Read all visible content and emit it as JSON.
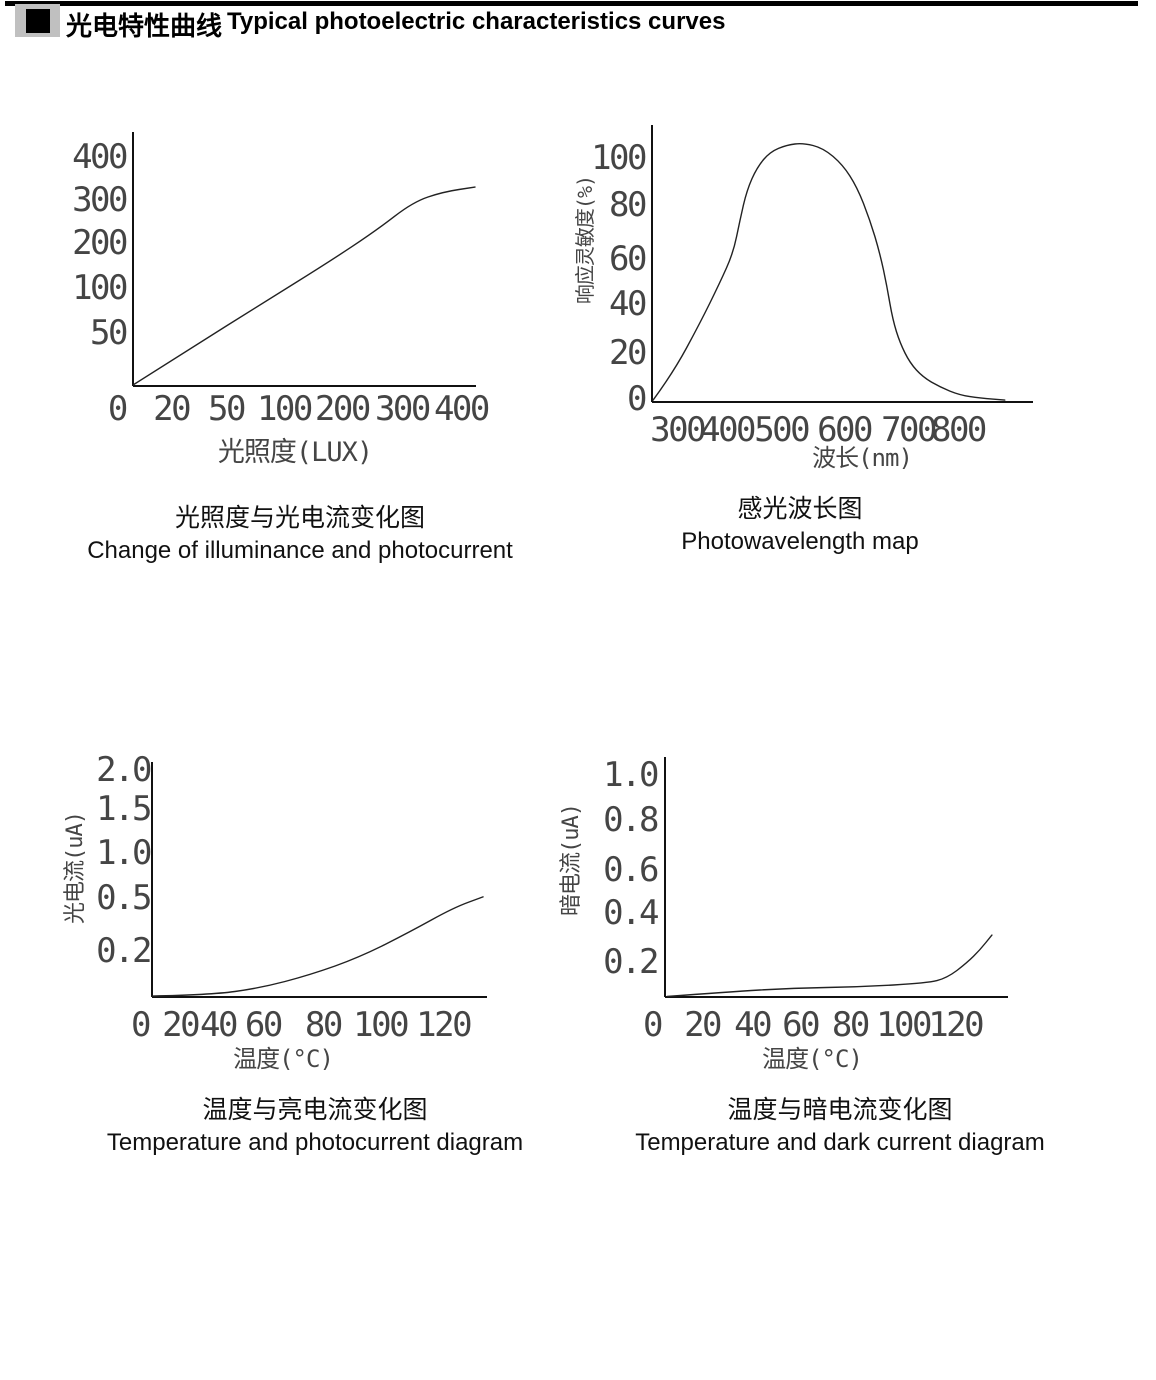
{
  "page": {
    "header": {
      "bullet_icon": "black-square",
      "title_cn": "光电特性曲线",
      "title_en": "Typical photoelectric characteristics curves"
    }
  },
  "chart_data": [
    {
      "id": "illuminance-photocurrent",
      "type": "line",
      "caption_cn": "光照度与光电流变化图",
      "caption_en": "Change of illuminance and photocurrent",
      "xlabel": "光照度(LUX)",
      "ylabel": "",
      "x_unit": "LUX",
      "y_unit": "",
      "x_ticks": {
        "labels": [
          "0",
          "20",
          "50",
          "100",
          "200",
          "300",
          "400"
        ],
        "fracs": [
          -0.047,
          0.111,
          0.271,
          0.44,
          0.609,
          0.784,
          0.956
        ]
      },
      "y_ticks": {
        "labels": [
          "400",
          "300",
          "200",
          "100",
          "50"
        ],
        "fracs": [
          0.906,
          0.736,
          0.567,
          0.39,
          0.213
        ]
      },
      "points": [
        [
          0,
          0
        ],
        [
          20,
          28
        ],
        [
          50,
          65
        ],
        [
          100,
          115
        ],
        [
          200,
          200
        ],
        [
          300,
          285
        ],
        [
          400,
          325
        ]
      ],
      "curve_frac": [
        [
          0,
          0.004
        ],
        [
          0.175,
          0.154
        ],
        [
          0.37,
          0.319
        ],
        [
          0.566,
          0.484
        ],
        [
          0.711,
          0.614
        ],
        [
          0.816,
          0.724
        ],
        [
          0.904,
          0.764
        ],
        [
          0.997,
          0.783
        ]
      ],
      "grid": false,
      "legend": false
    },
    {
      "id": "photowavelength",
      "type": "line",
      "caption_cn": "感光波长图",
      "caption_en": "Photowavelength map",
      "xlabel": "波长(nm)",
      "ylabel": "响应灵敏度(%)",
      "x_unit": "nm",
      "y_unit": "%",
      "x_ticks": {
        "labels": [
          "300",
          "400",
          "500",
          "600",
          "700",
          "800"
        ],
        "fracs": [
          0.066,
          0.197,
          0.339,
          0.504,
          0.672,
          0.803
        ]
      },
      "y_ticks": {
        "labels": [
          "100",
          "80",
          "60",
          "40",
          "20",
          "0"
        ],
        "fracs": [
          0.884,
          0.715,
          0.52,
          0.357,
          0.181,
          0.014
        ]
      },
      "points": [
        [
          300,
          2
        ],
        [
          350,
          14
        ],
        [
          400,
          30
        ],
        [
          430,
          43
        ],
        [
          450,
          60
        ],
        [
          470,
          82
        ],
        [
          490,
          95
        ],
        [
          520,
          103
        ],
        [
          545,
          105
        ],
        [
          570,
          101
        ],
        [
          600,
          88
        ],
        [
          625,
          65
        ],
        [
          645,
          45
        ],
        [
          665,
          25
        ],
        [
          690,
          13
        ],
        [
          720,
          7
        ],
        [
          760,
          3
        ],
        [
          810,
          1
        ]
      ],
      "curve_frac": [
        [
          0.003,
          0.007
        ],
        [
          0.055,
          0.105
        ],
        [
          0.126,
          0.285
        ],
        [
          0.178,
          0.43
        ],
        [
          0.213,
          0.538
        ],
        [
          0.231,
          0.657
        ],
        [
          0.249,
          0.765
        ],
        [
          0.276,
          0.848
        ],
        [
          0.31,
          0.903
        ],
        [
          0.354,
          0.928
        ],
        [
          0.396,
          0.935
        ],
        [
          0.449,
          0.917
        ],
        [
          0.501,
          0.856
        ],
        [
          0.538,
          0.776
        ],
        [
          0.572,
          0.657
        ],
        [
          0.598,
          0.538
        ],
        [
          0.617,
          0.415
        ],
        [
          0.632,
          0.296
        ],
        [
          0.651,
          0.213
        ],
        [
          0.677,
          0.141
        ],
        [
          0.711,
          0.09
        ],
        [
          0.756,
          0.054
        ],
        [
          0.808,
          0.025
        ],
        [
          0.861,
          0.014
        ],
        [
          0.926,
          0.007
        ]
      ],
      "grid": false,
      "legend": false
    },
    {
      "id": "temperature-photocurrent",
      "type": "line",
      "caption_cn": "温度与亮电流变化图",
      "caption_en": "Temperature and photocurrent diagram",
      "xlabel": "温度(°C)",
      "ylabel": "光电流(uA)",
      "x_unit": "°C",
      "y_unit": "uA",
      "x_ticks": {
        "labels": [
          "0",
          "20",
          "40",
          "60",
          "80",
          "100",
          "120"
        ],
        "fracs": [
          -0.036,
          0.084,
          0.197,
          0.331,
          0.51,
          0.681,
          0.869
        ]
      },
      "y_ticks": {
        "labels": [
          "2.0",
          "1.5",
          "1.0",
          "0.5",
          "0.2"
        ],
        "fracs": [
          0.97,
          0.804,
          0.617,
          0.426,
          0.2
        ]
      },
      "points": [
        [
          0,
          0
        ],
        [
          20,
          0.01
        ],
        [
          40,
          0.02
        ],
        [
          60,
          0.05
        ],
        [
          80,
          0.1
        ],
        [
          100,
          0.17
        ],
        [
          120,
          0.3
        ],
        [
          140,
          0.5
        ]
      ],
      "curve_frac": [
        [
          0,
          0.004
        ],
        [
          0.173,
          0.009
        ],
        [
          0.322,
          0.038
        ],
        [
          0.472,
          0.094
        ],
        [
          0.621,
          0.17
        ],
        [
          0.77,
          0.277
        ],
        [
          0.899,
          0.379
        ],
        [
          0.988,
          0.426
        ]
      ],
      "grid": false,
      "legend": false
    },
    {
      "id": "temperature-darkcurrent",
      "type": "line",
      "caption_cn": "温度与暗电流变化图",
      "caption_en": "Temperature and dark current diagram",
      "xlabel": "温度(°C)",
      "ylabel": "暗电流(uA)",
      "x_unit": "°C",
      "y_unit": "uA",
      "x_ticks": {
        "labels": [
          "0",
          "20",
          "40",
          "60",
          "80",
          "100",
          "120"
        ],
        "fracs": [
          -0.038,
          0.108,
          0.254,
          0.394,
          0.539,
          0.694,
          0.846
        ]
      },
      "y_ticks": {
        "labels": [
          "1.0",
          "0.8",
          "0.6",
          "0.4",
          "0.2"
        ],
        "fracs": [
          0.929,
          0.742,
          0.533,
          0.354,
          0.15
        ]
      },
      "points": [
        [
          0,
          0
        ],
        [
          20,
          0.02
        ],
        [
          40,
          0.03
        ],
        [
          60,
          0.04
        ],
        [
          80,
          0.05
        ],
        [
          100,
          0.06
        ],
        [
          120,
          0.1
        ],
        [
          135,
          0.2
        ],
        [
          140,
          0.3
        ]
      ],
      "curve_frac": [
        [
          0.006,
          0.002
        ],
        [
          0.181,
          0.021
        ],
        [
          0.373,
          0.037
        ],
        [
          0.568,
          0.042
        ],
        [
          0.764,
          0.058
        ],
        [
          0.822,
          0.079
        ],
        [
          0.88,
          0.142
        ],
        [
          0.918,
          0.196
        ],
        [
          0.953,
          0.258
        ]
      ],
      "grid": false,
      "legend": false
    }
  ]
}
